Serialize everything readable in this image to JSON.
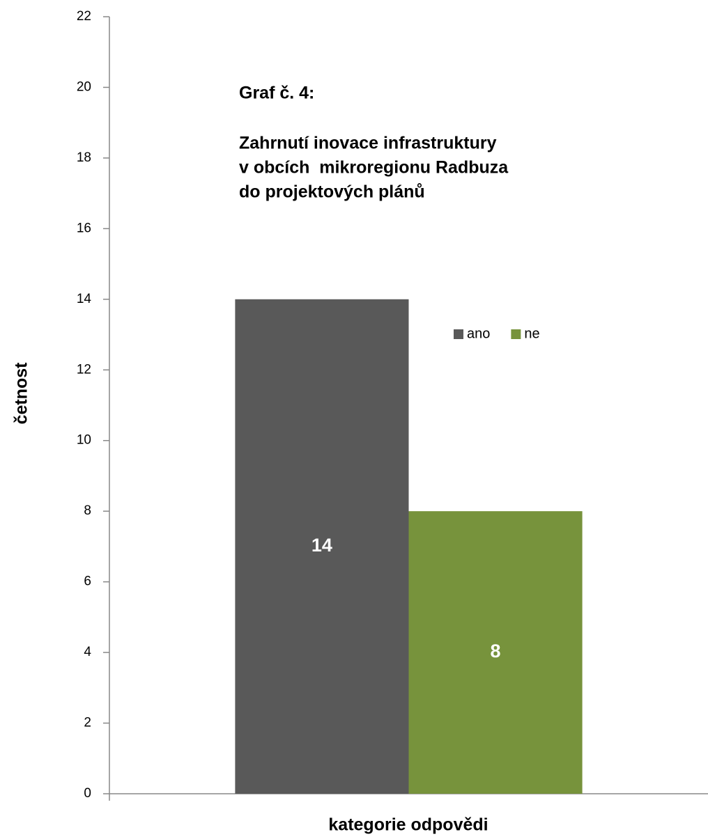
{
  "chart_data": {
    "type": "bar",
    "title": "Graf č. 4:",
    "subtitle": [
      "Zahrnutí inovace infrastruktury",
      "v obcích  mikroregionu Radbuza",
      "do projektových plánů"
    ],
    "x_label": "kategorie odpovědi",
    "y_label": "četnost",
    "categories": [
      null
    ],
    "series": [
      {
        "name": "ano",
        "color": "#595959",
        "values": [
          14
        ]
      },
      {
        "name": "ne",
        "color": "#77933c",
        "values": [
          8
        ]
      }
    ],
    "ylim": [
      0,
      22
    ],
    "yticks": [
      0,
      2,
      4,
      6,
      8,
      10,
      12,
      14,
      16,
      18,
      20,
      22
    ],
    "grid": false,
    "legend": "right"
  }
}
